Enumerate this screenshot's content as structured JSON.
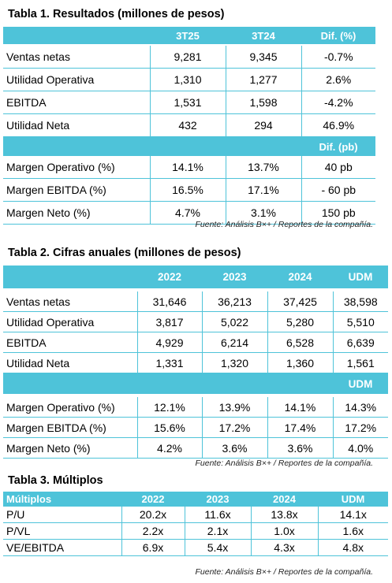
{
  "table1": {
    "title": "Tabla 1. Resultados (millones de pesos)",
    "columns": [
      "",
      "3T25",
      "3T24",
      "Dif. (%)"
    ],
    "rows": [
      {
        "label": "Ventas netas",
        "values": [
          "9,281",
          "9,345",
          "-0.7%"
        ]
      },
      {
        "label": "Utilidad Operativa",
        "values": [
          "1,310",
          "1,277",
          "2.6%"
        ]
      },
      {
        "label": "EBITDA",
        "values": [
          "1,531",
          "1,598",
          "-4.2%"
        ]
      },
      {
        "label": "Utilidad Neta",
        "values": [
          "432",
          "294",
          "46.9%"
        ]
      }
    ],
    "subheader": "Dif. (pb)",
    "margin_rows": [
      {
        "label": "Margen Operativo (%)",
        "values": [
          "14.1%",
          "13.7%",
          "40 pb"
        ]
      },
      {
        "label": "Margen EBITDA (%)",
        "values": [
          "16.5%",
          "17.1%",
          "- 60 pb"
        ]
      },
      {
        "label": "Margen Neto (%)",
        "values": [
          "4.7%",
          "3.1%",
          "150 pb"
        ]
      }
    ],
    "source": "Fuente: Análisis B×+ / Reportes de la compañía."
  },
  "table2": {
    "title": "Tabla 2. Cifras anuales (millones de pesos)",
    "columns": [
      "",
      "2022",
      "2023",
      "2024",
      "UDM"
    ],
    "rows": [
      {
        "label": "Ventas netas",
        "values": [
          "31,646",
          "36,213",
          "37,425",
          "38,598"
        ]
      },
      {
        "label": "Utilidad Operativa",
        "values": [
          "3,817",
          "5,022",
          "5,280",
          "5,510"
        ]
      },
      {
        "label": "EBITDA",
        "values": [
          "4,929",
          "6,214",
          "6,528",
          "6,639"
        ]
      },
      {
        "label": "Utilidad Neta",
        "values": [
          "1,331",
          "1,320",
          "1,360",
          "1,561"
        ]
      }
    ],
    "subheader": "UDM",
    "margin_rows": [
      {
        "label": "Margen Operativo (%)",
        "values": [
          "12.1%",
          "13.9%",
          "14.1%",
          "14.3%"
        ]
      },
      {
        "label": "Margen EBITDA (%)",
        "values": [
          "15.6%",
          "17.2%",
          "17.4%",
          "17.2%"
        ]
      },
      {
        "label": "Margen Neto (%)",
        "values": [
          "4.2%",
          "3.6%",
          "3.6%",
          "4.0%"
        ]
      }
    ],
    "source": "Fuente: Análisis B×+ / Reportes de la compañía."
  },
  "table3": {
    "title": "Tabla 3. Múltiplos",
    "columns": [
      "Múltiplos",
      "2022",
      "2023",
      "2024",
      "UDM"
    ],
    "rows": [
      {
        "label": "P/U",
        "values": [
          "20.2x",
          "11.6x",
          "13.8x",
          "14.1x"
        ]
      },
      {
        "label": "P/VL",
        "values": [
          "2.2x",
          "2.1x",
          "1.0x",
          "1.6x"
        ]
      },
      {
        "label": "VE/EBITDA",
        "values": [
          "6.9x",
          "5.4x",
          "4.3x",
          "4.8x"
        ]
      }
    ],
    "source": "Fuente: Análisis B×+ / Reportes de la compañía."
  }
}
